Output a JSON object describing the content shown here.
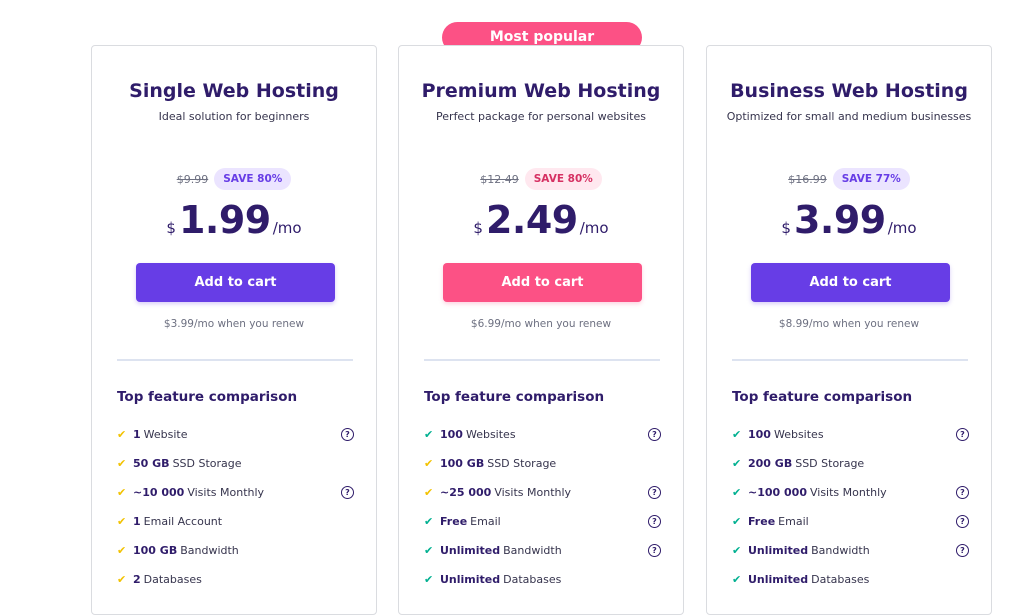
{
  "badge": {
    "label": "Most popular"
  },
  "colors": {
    "purple": "#673de6",
    "pink": "#fc5185",
    "navy": "#2f1c6a"
  },
  "feature_heading": "Top feature comparison",
  "plans": [
    {
      "title": "Single Web Hosting",
      "subtitle": "Ideal solution for beginners",
      "old_price": "$9.99",
      "save": "SAVE 80%",
      "currency": "$",
      "price": "1.99",
      "period": "/mo",
      "button": "Add to cart",
      "renew": "$3.99/mo when you renew",
      "features": [
        {
          "check": "check-icon",
          "value": "1",
          "text": "Website",
          "help": true
        },
        {
          "check": "check-icon",
          "value": "50 GB",
          "text": "SSD Storage",
          "help": false
        },
        {
          "check": "check-icon",
          "value": "~10 000",
          "text": "Visits Monthly",
          "help": true
        },
        {
          "check": "check-icon",
          "value": "1",
          "text": "Email Account",
          "help": false
        },
        {
          "check": "check-icon",
          "value": "100 GB",
          "text": "Bandwidth",
          "help": false
        },
        {
          "check": "check-icon",
          "value": "2",
          "text": "Databases",
          "help": false
        }
      ]
    },
    {
      "title": "Premium Web Hosting",
      "subtitle": "Perfect package for personal websites",
      "old_price": "$12.49",
      "save": "SAVE 80%",
      "currency": "$",
      "price": "2.49",
      "period": "/mo",
      "button": "Add to cart",
      "renew": "$6.99/mo when you renew",
      "features": [
        {
          "check": "check-icon",
          "value": "100",
          "text": "Websites",
          "help": true
        },
        {
          "check": "check-icon",
          "value": "100 GB",
          "text": "SSD Storage",
          "help": false
        },
        {
          "check": "check-icon",
          "value": "~25 000",
          "text": "Visits Monthly",
          "help": true
        },
        {
          "check": "check-icon",
          "value": "Free",
          "text": "Email",
          "help": true
        },
        {
          "check": "check-icon",
          "value": "Unlimited",
          "text": "Bandwidth",
          "help": true
        },
        {
          "check": "check-icon",
          "value": "Unlimited",
          "text": "Databases",
          "help": false
        }
      ]
    },
    {
      "title": "Business Web Hosting",
      "subtitle": "Optimized for small and medium businesses",
      "old_price": "$16.99",
      "save": "SAVE 77%",
      "currency": "$",
      "price": "3.99",
      "period": "/mo",
      "button": "Add to cart",
      "renew": "$8.99/mo when you renew",
      "features": [
        {
          "check": "check-icon",
          "value": "100",
          "text": "Websites",
          "help": true
        },
        {
          "check": "check-icon",
          "value": "200 GB",
          "text": "SSD Storage",
          "help": false
        },
        {
          "check": "check-icon",
          "value": "~100 000",
          "text": "Visits Monthly",
          "help": true
        },
        {
          "check": "check-icon",
          "value": "Free",
          "text": "Email",
          "help": true
        },
        {
          "check": "check-icon",
          "value": "Unlimited",
          "text": "Bandwidth",
          "help": true
        },
        {
          "check": "check-icon",
          "value": "Unlimited",
          "text": "Databases",
          "help": false
        }
      ]
    }
  ]
}
